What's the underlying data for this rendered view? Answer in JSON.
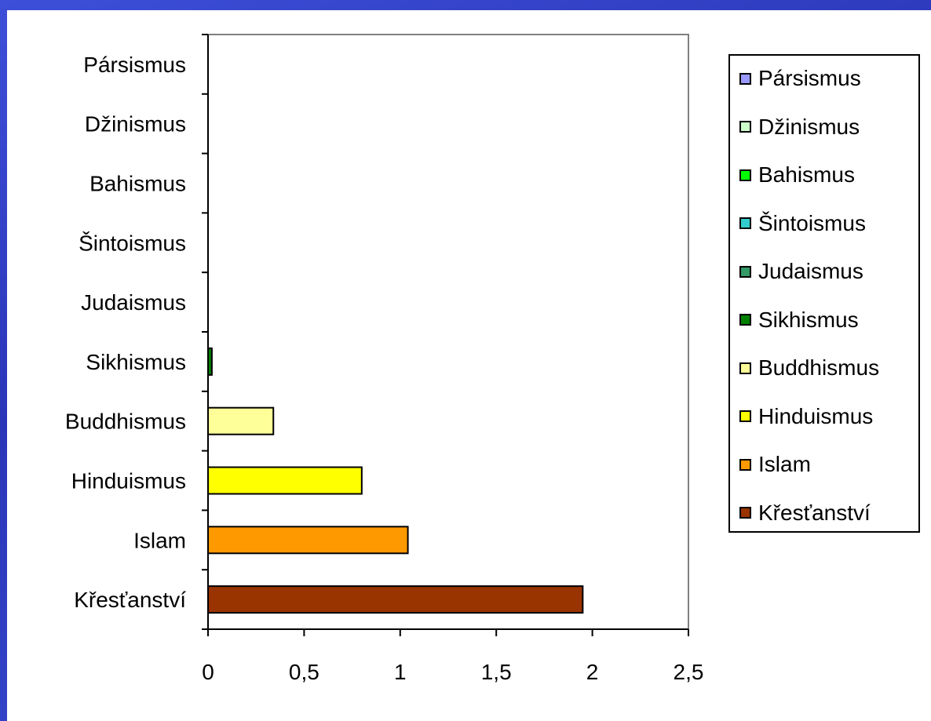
{
  "chart_data": {
    "type": "bar",
    "orientation": "horizontal",
    "categories": [
      "Křesťanství",
      "Islam",
      "Hinduismus",
      "Buddhismus",
      "Sikhismus",
      "Judaismus",
      "Šintoismus",
      "Bahismus",
      "Džinismus",
      "Pársismus"
    ],
    "values": [
      1.95,
      1.04,
      0.8,
      0.34,
      0.02,
      0.0,
      0.0,
      0.0,
      0.0,
      0.0
    ],
    "colors": [
      "#993300",
      "#ff9900",
      "#ffff00",
      "#ffff99",
      "#008000",
      "#339966",
      "#33cccc",
      "#00ff00",
      "#ccffcc",
      "#9999ff"
    ],
    "xlim": [
      0,
      2.5
    ],
    "xticks": [
      "0",
      "0,5",
      "1",
      "1,5",
      "2",
      "2,5"
    ],
    "grid": false,
    "legend_position": "right",
    "legend": [
      "Pársismus",
      "Džinismus",
      "Bahismus",
      "Šintoismus",
      "Judaismus",
      "Sikhismus",
      "Buddhismus",
      "Hinduismus",
      "Islam",
      "Křesťanství"
    ],
    "legend_colors": [
      "#9999ff",
      "#ccffcc",
      "#00ff00",
      "#33cccc",
      "#339966",
      "#008000",
      "#ffff99",
      "#ffff00",
      "#ff9900",
      "#993300"
    ],
    "title": "",
    "xlabel": "",
    "ylabel": ""
  }
}
